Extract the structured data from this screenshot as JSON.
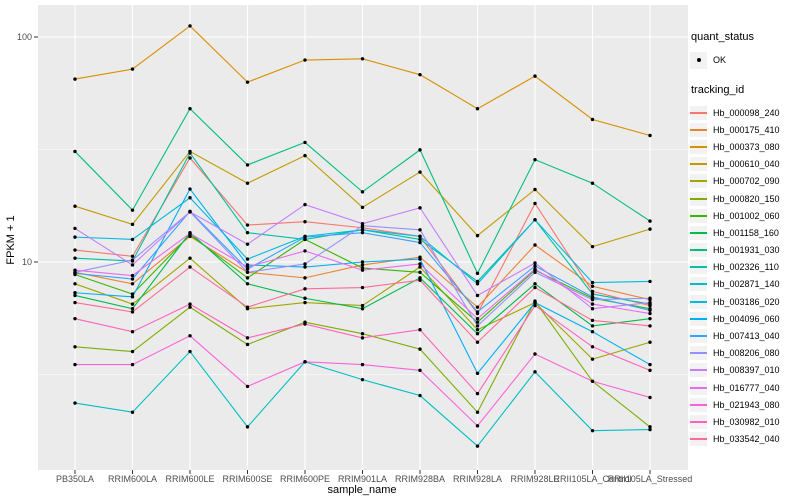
{
  "chart_data": {
    "type": "line",
    "title": "",
    "xlabel": "sample_name",
    "ylabel": "FPKM + 1",
    "y_scale": "log10",
    "ylim": [
      1.2,
      140
    ],
    "y_ticks": [
      10,
      100
    ],
    "y_tick_labels": [
      "10",
      "100"
    ],
    "y_minor_ticks": [
      3.162,
      31.62
    ],
    "grid": true,
    "legend_position": "right",
    "point_color": "#000000",
    "panel_bg": "#EBEBEB",
    "grid_color": "#FFFFFF",
    "axis_text_color": "#4D4D4D",
    "legend_key_bg": "#F2F2F2",
    "legends": {
      "quant_status": {
        "title": "quant_status",
        "items": [
          {
            "label": "OK",
            "marker": "point"
          }
        ]
      },
      "tracking_id": {
        "title": "tracking_id"
      }
    },
    "categories": [
      "PB350LA",
      "RRIM600LA",
      "RRIM600LE",
      "RRIM600SE",
      "RRIM600PE",
      "RRIM901LA",
      "RRIM928BA",
      "RRIM928LA",
      "RRIM928LE",
      "RRII105LA_Control",
      "RRII105LA_Stressed"
    ],
    "series": [
      {
        "name": "Hb_000098_240",
        "color": "#F8766D",
        "values": [
          11.3,
          10.6,
          29,
          14.6,
          15.1,
          14.2,
          13.0,
          5.9,
          18.2,
          7.4,
          6.4
        ]
      },
      {
        "name": "Hb_000175_410",
        "color": "#EA8331",
        "values": [
          9.0,
          8.0,
          13.0,
          9.0,
          8.5,
          9.7,
          10.5,
          6.3,
          11.9,
          7.8,
          6.8
        ]
      },
      {
        "name": "Hb_000373_080",
        "color": "#D89000",
        "values": [
          65,
          72,
          112,
          63,
          79,
          80,
          68,
          48,
          67,
          43,
          36.5
        ]
      },
      {
        "name": "Hb_000610_040",
        "color": "#C09B00",
        "values": [
          17.7,
          14.7,
          31,
          22.4,
          29.7,
          17.5,
          25.1,
          13.1,
          21.0,
          11.7,
          14.0
        ]
      },
      {
        "name": "Hb_000702_090",
        "color": "#A3A500",
        "values": [
          8.0,
          6.5,
          10.4,
          6.2,
          6.6,
          6.4,
          9.5,
          5.0,
          6.6,
          3.7,
          4.4
        ]
      },
      {
        "name": "Hb_000820_150",
        "color": "#7CAE00",
        "values": [
          4.2,
          4.0,
          6.3,
          4.3,
          5.4,
          4.8,
          4.1,
          2.15,
          6.7,
          2.95,
          1.85
        ]
      },
      {
        "name": "Hb_001002_060",
        "color": "#39B600",
        "values": [
          8.8,
          7.2,
          13.2,
          8.5,
          12.6,
          9.4,
          9.0,
          5.4,
          9.2,
          6.9,
          6.2
        ]
      },
      {
        "name": "Hb_001158_160",
        "color": "#00BB4E",
        "values": [
          7.1,
          6.2,
          13.5,
          8.0,
          6.9,
          6.2,
          8.5,
          4.8,
          8.0,
          5.2,
          5.6
        ]
      },
      {
        "name": "Hb_001931_030",
        "color": "#00BF7D",
        "values": [
          31,
          17,
          48,
          27,
          34,
          20.5,
          31.5,
          8.9,
          28.5,
          22.4,
          15.2
        ]
      },
      {
        "name": "Hb_002326_110",
        "color": "#00C1A3",
        "values": [
          10.4,
          10.1,
          30.5,
          13.5,
          12.6,
          13.9,
          12.6,
          8.2,
          15.4,
          7.2,
          6.5
        ]
      },
      {
        "name": "Hb_002871_140",
        "color": "#00BFC4",
        "values": [
          2.36,
          2.15,
          4.0,
          1.85,
          3.6,
          3.0,
          2.55,
          1.52,
          3.25,
          1.78,
          1.8
        ]
      },
      {
        "name": "Hb_003186_020",
        "color": "#00BAE0",
        "values": [
          12.9,
          12.6,
          19.3,
          10.3,
          13.0,
          13.9,
          13.0,
          8.0,
          15.4,
          8.1,
          8.2
        ]
      },
      {
        "name": "Hb_004096_060",
        "color": "#00B0F6",
        "values": [
          7.3,
          7.0,
          21.1,
          9.7,
          9.5,
          10.0,
          10.3,
          3.2,
          6.6,
          4.9,
          3.5
        ]
      },
      {
        "name": "Hb_007413_040",
        "color": "#35A2FF",
        "values": [
          8.9,
          8.4,
          16.8,
          9.3,
          12.9,
          13.5,
          12.2,
          6.0,
          9.6,
          7.0,
          6.1
        ]
      },
      {
        "name": "Hb_008206_080",
        "color": "#9590FF",
        "values": [
          9.0,
          10.2,
          16.7,
          9.0,
          9.8,
          14.5,
          13.9,
          5.2,
          9.0,
          6.8,
          6.9
        ]
      },
      {
        "name": "Hb_008397_010",
        "color": "#C77CFF",
        "values": [
          14.1,
          9.7,
          16.7,
          12.0,
          18.0,
          14.8,
          17.4,
          7.1,
          9.9,
          6.2,
          6.6
        ]
      },
      {
        "name": "Hb_016777_040",
        "color": "#E76BF3",
        "values": [
          9.2,
          8.7,
          13.4,
          9.5,
          11.2,
          9.2,
          9.8,
          5.6,
          9.3,
          6.5,
          5.9
        ]
      },
      {
        "name": "Hb_021943_080",
        "color": "#FA62DB",
        "values": [
          3.5,
          3.5,
          4.7,
          2.8,
          3.6,
          3.5,
          3.3,
          1.87,
          3.9,
          2.95,
          2.5
        ]
      },
      {
        "name": "Hb_030982_010",
        "color": "#FF62BC",
        "values": [
          5.6,
          4.9,
          6.5,
          4.6,
          5.3,
          4.6,
          5.0,
          2.6,
          6.4,
          4.2,
          3.3
        ]
      },
      {
        "name": "Hb_033542_040",
        "color": "#FF6A98",
        "values": [
          6.6,
          6.0,
          9.5,
          6.3,
          7.6,
          7.7,
          8.3,
          4.4,
          7.7,
          5.5,
          5.2
        ]
      }
    ]
  }
}
